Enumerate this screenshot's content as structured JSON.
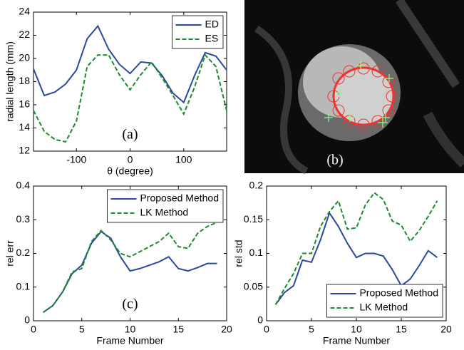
{
  "chart_data": [
    {
      "type": "line",
      "annotation": "(a)",
      "x_label": "θ (degree)",
      "y_label": "radial length (mm)",
      "x": [
        -180,
        -160,
        -140,
        -120,
        -100,
        -80,
        -60,
        -40,
        -20,
        0,
        20,
        40,
        60,
        80,
        100,
        120,
        140,
        160,
        180
      ],
      "series": [
        {
          "name": "ED",
          "color": "#2b4a9b",
          "dash": false,
          "values": [
            19.1,
            16.8,
            17.1,
            17.8,
            19.0,
            21.7,
            22.8,
            20.8,
            19.5,
            18.7,
            19.7,
            19.6,
            18.5,
            17.0,
            16.2,
            18.5,
            20.5,
            20.2,
            19.0
          ]
        },
        {
          "name": "ES",
          "color": "#1e8a30",
          "dash": true,
          "values": [
            15.5,
            13.7,
            13.0,
            12.8,
            14.6,
            19.3,
            20.3,
            20.3,
            18.6,
            17.3,
            18.6,
            19.7,
            18.3,
            16.8,
            15.2,
            17.5,
            20.3,
            19.3,
            15.5
          ]
        }
      ],
      "xlim": [
        -180,
        180
      ],
      "xticks": [
        -100,
        0,
        100
      ],
      "ylim": [
        12,
        24
      ],
      "yticks": [
        12,
        14,
        16,
        18,
        20,
        22,
        24
      ],
      "legend": "upper right"
    },
    {
      "type": "line",
      "annotation": "(c)",
      "x_label": "Frame Number",
      "y_label": "rel err",
      "x": [
        1,
        2,
        3,
        4,
        5,
        6,
        7,
        8,
        9,
        10,
        11,
        12,
        13,
        14,
        15,
        16,
        17,
        18,
        19
      ],
      "series": [
        {
          "name": "Proposed Method",
          "color": "#2b4a9b",
          "dash": false,
          "values": [
            0.025,
            0.045,
            0.085,
            0.14,
            0.165,
            0.23,
            0.265,
            0.245,
            0.19,
            0.148,
            0.155,
            0.165,
            0.175,
            0.19,
            0.155,
            0.148,
            0.158,
            0.17,
            0.17
          ]
        },
        {
          "name": "LK Method",
          "color": "#1e8a30",
          "dash": true,
          "values": [
            0.025,
            0.045,
            0.085,
            0.145,
            0.155,
            0.235,
            0.268,
            0.24,
            0.2,
            0.19,
            0.205,
            0.22,
            0.235,
            0.26,
            0.22,
            0.215,
            0.26,
            0.28,
            0.292
          ]
        }
      ],
      "xlim": [
        0,
        20
      ],
      "xticks": [
        0,
        5,
        10,
        15,
        20
      ],
      "ylim": [
        0,
        0.4
      ],
      "yticks": [
        0,
        0.1,
        0.2,
        0.3,
        0.4
      ],
      "legend": "upper right"
    },
    {
      "type": "line",
      "x_label": "Frame Number",
      "y_label": "rel std",
      "x": [
        1,
        2,
        3,
        4,
        5,
        6,
        7,
        8,
        9,
        10,
        11,
        12,
        13,
        14,
        15,
        16,
        17,
        18,
        19
      ],
      "series": [
        {
          "name": "Proposed Method",
          "color": "#2b4a9b",
          "dash": false,
          "values": [
            0.024,
            0.042,
            0.052,
            0.09,
            0.087,
            0.12,
            0.16,
            0.14,
            0.115,
            0.094,
            0.1,
            0.1,
            0.096,
            0.076,
            0.052,
            0.062,
            0.082,
            0.104,
            0.094
          ]
        },
        {
          "name": "LK Method",
          "color": "#1e8a30",
          "dash": true,
          "values": [
            0.024,
            0.048,
            0.07,
            0.1,
            0.1,
            0.14,
            0.162,
            0.178,
            0.136,
            0.138,
            0.172,
            0.19,
            0.18,
            0.148,
            0.142,
            0.118,
            0.134,
            0.155,
            0.178
          ]
        }
      ],
      "xlim": [
        0,
        20
      ],
      "xticks": [
        0,
        5,
        10,
        15,
        20
      ],
      "ylim": [
        0,
        0.2
      ],
      "yticks": [
        0,
        0.05,
        0.1,
        0.15,
        0.2
      ],
      "legend": "lower right"
    }
  ],
  "image_panel": {
    "label": "(b)"
  }
}
